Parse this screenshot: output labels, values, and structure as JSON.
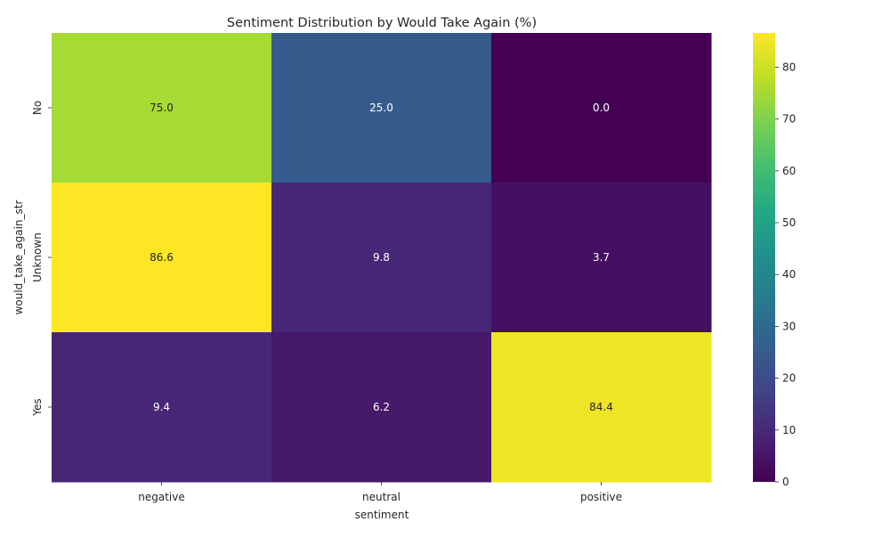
{
  "chart_data": {
    "type": "heatmap",
    "title": "Sentiment Distribution by Would Take Again (%)",
    "xlabel": "sentiment",
    "ylabel": "would_take_again_str",
    "x_categories": [
      "negative",
      "neutral",
      "positive"
    ],
    "y_categories": [
      "No",
      "Unknown",
      "Yes"
    ],
    "values": [
      [
        75.0,
        25.0,
        0.0
      ],
      [
        86.6,
        9.8,
        3.7
      ],
      [
        9.4,
        6.2,
        84.4
      ]
    ],
    "value_labels": [
      [
        "75.0",
        "25.0",
        "0.0"
      ],
      [
        "86.6",
        "9.8",
        "3.7"
      ],
      [
        "9.4",
        "6.2",
        "84.4"
      ]
    ],
    "colormap": "viridis",
    "vmin": 0,
    "vmax": 86.6,
    "colorbar_ticks": [
      "0",
      "10",
      "20",
      "30",
      "40",
      "50",
      "60",
      "70",
      "80"
    ],
    "grid": false,
    "colors": {
      "text_dark": "#262626",
      "annot_light": "#ffffff",
      "annot_dark": "#262626"
    }
  }
}
